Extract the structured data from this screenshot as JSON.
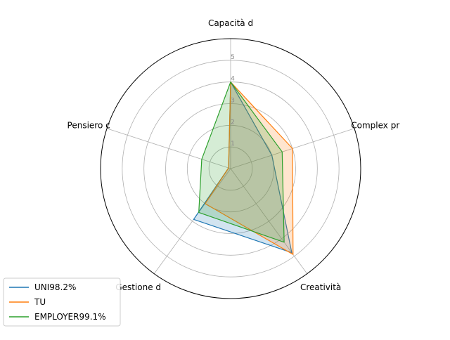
{
  "chart_data": {
    "type": "radar",
    "title": "",
    "axes": [
      "Capacità d",
      "Complex pr",
      "Creatività",
      "Gestione d",
      "Pensiero c"
    ],
    "rmax": 6,
    "rticks": [
      1,
      2,
      3,
      4,
      5
    ],
    "rtick_labels": [
      "1",
      "2",
      "3",
      "4",
      "5"
    ],
    "grid": true,
    "legend_position": "lower-left",
    "series": [
      {
        "name": "UNI98.2%",
        "values": [
          4.0,
          2.0,
          4.8,
          2.9,
          0.1
        ],
        "color": "#1f77b4"
      },
      {
        "name": "TU",
        "values": [
          4.0,
          3.0,
          4.9,
          2.0,
          0.1
        ],
        "color": "#ff7f0e"
      },
      {
        "name": "EMPLOYER99.1%",
        "values": [
          4.0,
          2.5,
          4.2,
          2.5,
          1.4
        ],
        "color": "#2ca02c"
      }
    ]
  }
}
